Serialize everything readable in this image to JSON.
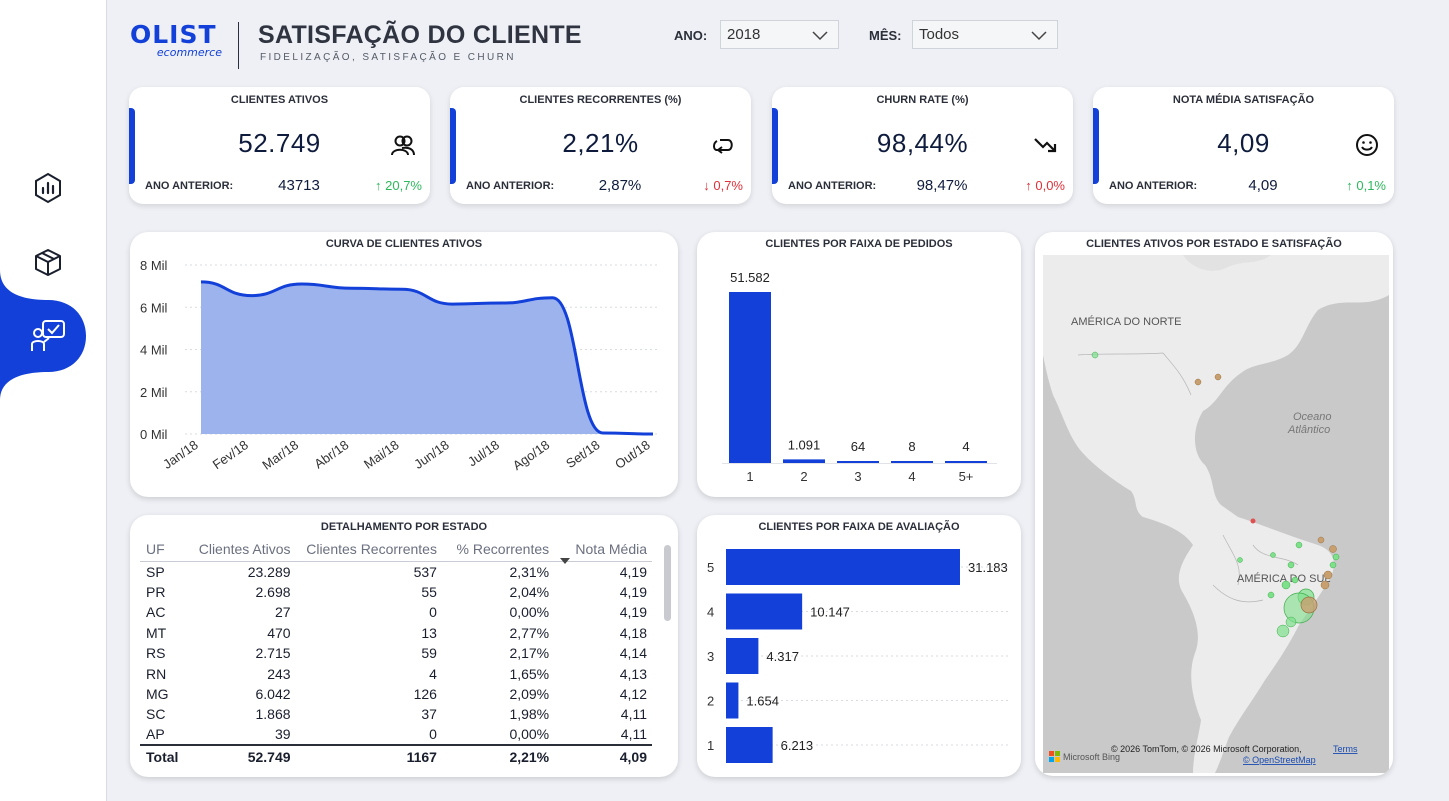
{
  "header": {
    "logo_main": "OLIST",
    "logo_sub": "ecommerce",
    "title": "SATISFAÇÃO DO CLIENTE",
    "subtitle": "FIDELIZAÇÃO, SATISFAÇÃO E CHURN"
  },
  "filters": {
    "year_label": "ANO:",
    "year_value": "2018",
    "month_label": "MÊS:",
    "month_value": "Todos"
  },
  "kpis": [
    {
      "title": "CLIENTES ATIVOS",
      "value": "52.749",
      "prev_label": "ANO ANTERIOR:",
      "prev_value": "43713",
      "delta": "↑ 20,7%",
      "trend": "up",
      "icon": "users-icon"
    },
    {
      "title": "CLIENTES RECORRENTES (%)",
      "value": "2,21%",
      "prev_label": "ANO ANTERIOR:",
      "prev_value": "2,87%",
      "delta": "↓ 0,7%",
      "trend": "down",
      "icon": "repeat-icon"
    },
    {
      "title": "CHURN RATE (%)",
      "value": "98,44%",
      "prev_label": "ANO ANTERIOR:",
      "prev_value": "98,47%",
      "delta": "↑ 0,0%",
      "trend": "down",
      "icon": "trend-down-icon"
    },
    {
      "title": "NOTA MÉDIA SATISFAÇÃO",
      "value": "4,09",
      "prev_label": "ANO ANTERIOR:",
      "prev_value": "4,09",
      "delta": "↑ 0,1%",
      "trend": "up",
      "icon": "smile-icon"
    }
  ],
  "panels": {
    "curve_title": "CURVA DE CLIENTES ATIVOS",
    "orders_title": "CLIENTES POR FAIXA DE PEDIDOS",
    "map_title": "CLIENTES ATIVOS POR ESTADO E SATISFAÇÃO",
    "table_title": "DETALHAMENTO POR ESTADO",
    "rating_title": "CLIENTES POR FAIXA DE AVALIAÇÃO"
  },
  "map": {
    "labels": [
      "AMÉRICA DO NORTE",
      "Oceano",
      "Atlântico",
      "AMÉRICA DO SUL"
    ],
    "credit": "© 2026 TomTom, © 2026 Microsoft Corporation,",
    "terms": "Terms",
    "osm": "© OpenStreetMap",
    "bing": "Microsoft Bing"
  },
  "table": {
    "columns": [
      "UF",
      "Clientes Ativos",
      "Clientes Recorrentes",
      "% Recorrentes",
      "Nota Média"
    ],
    "rows": [
      [
        "SP",
        "23.289",
        "537",
        "2,31%",
        "4,19"
      ],
      [
        "PR",
        "2.698",
        "55",
        "2,04%",
        "4,19"
      ],
      [
        "AC",
        "27",
        "0",
        "0,00%",
        "4,19"
      ],
      [
        "MT",
        "470",
        "13",
        "2,77%",
        "4,18"
      ],
      [
        "RS",
        "2.715",
        "59",
        "2,17%",
        "4,14"
      ],
      [
        "RN",
        "243",
        "4",
        "1,65%",
        "4,13"
      ],
      [
        "MG",
        "6.042",
        "126",
        "2,09%",
        "4,12"
      ],
      [
        "SC",
        "1.868",
        "37",
        "1,98%",
        "4,11"
      ],
      [
        "AP",
        "39",
        "0",
        "0,00%",
        "4,11"
      ]
    ],
    "total": [
      "Total",
      "52.749",
      "1167",
      "2,21%",
      "4,09"
    ]
  },
  "chart_data": [
    {
      "type": "area",
      "title": "CURVA DE CLIENTES ATIVOS",
      "categories": [
        "Jan/18",
        "Fev/18",
        "Mar/18",
        "Abr/18",
        "Mai/18",
        "Jun/18",
        "Jul/18",
        "Ago/18",
        "Set/18",
        "Out/18"
      ],
      "values": [
        7200,
        6550,
        7100,
        6900,
        6850,
        6150,
        6200,
        6450,
        50,
        0
      ],
      "y_ticks": [
        "0 Mil",
        "2 Mil",
        "4 Mil",
        "6 Mil",
        "8 Mil"
      ],
      "ylim": [
        0,
        8000
      ],
      "grid": true,
      "colors": {
        "line": "#1240d8",
        "fill": "#9cb3ee"
      }
    },
    {
      "type": "bar",
      "title": "CLIENTES POR FAIXA DE PEDIDOS",
      "categories": [
        "1",
        "2",
        "3",
        "4",
        "5+"
      ],
      "values": [
        51582,
        1091,
        64,
        8,
        4
      ],
      "labels": [
        "51.582",
        "1.091",
        "64",
        "8",
        "4"
      ],
      "colors": {
        "bar": "#1240d8"
      }
    },
    {
      "type": "bar",
      "orientation": "horizontal",
      "title": "CLIENTES POR FAIXA DE AVALIAÇÃO",
      "categories": [
        "5",
        "4",
        "3",
        "2",
        "1"
      ],
      "values": [
        31183,
        10147,
        4317,
        1654,
        6213
      ],
      "labels": [
        "31.183",
        "10.147",
        "4.317",
        "1.654",
        "6.213"
      ],
      "colors": {
        "bar": "#1240d8"
      }
    }
  ]
}
